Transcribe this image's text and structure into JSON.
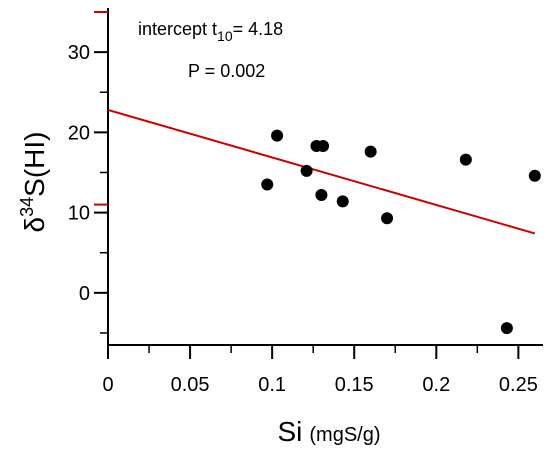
{
  "chart_data": {
    "type": "scatter",
    "xlabel_main": "Si",
    "xlabel_unit": "(mgS/g)",
    "ylabel_prefix": "δ",
    "ylabel_sup": "34",
    "ylabel_suffix": "S(HI)",
    "xlim": [
      0,
      0.265
    ],
    "ylim": [
      -6.5,
      35.5
    ],
    "x_ticks": [
      0,
      0.05,
      0.1,
      0.15,
      0.2,
      0.25
    ],
    "x_tick_labels": [
      "0",
      "0.05",
      "0.1",
      "0.15",
      "0.2",
      "0.25"
    ],
    "y_ticks": [
      0,
      10,
      20,
      30
    ],
    "y_tick_labels": [
      "0",
      "10",
      "20",
      "30"
    ],
    "grid": false,
    "points": [
      {
        "x": 0.097,
        "y": 13.5
      },
      {
        "x": 0.103,
        "y": 19.6
      },
      {
        "x": 0.121,
        "y": 15.2
      },
      {
        "x": 0.127,
        "y": 18.3
      },
      {
        "x": 0.131,
        "y": 18.3
      },
      {
        "x": 0.13,
        "y": 12.2
      },
      {
        "x": 0.143,
        "y": 11.4
      },
      {
        "x": 0.16,
        "y": 17.6
      },
      {
        "x": 0.17,
        "y": 9.3
      },
      {
        "x": 0.218,
        "y": 16.6
      },
      {
        "x": 0.243,
        "y": -4.4
      },
      {
        "x": 0.26,
        "y": 14.6
      }
    ],
    "regression_line": {
      "x": [
        0,
        0.26
      ],
      "y": [
        22.8,
        7.4
      ],
      "color": "#cc0000"
    },
    "intercept_ticks": {
      "values": [
        35,
        11
      ],
      "color": "#cc0000"
    },
    "annotation": {
      "line1_prefix": "intercept t",
      "line1_sub": "10",
      "line1_suffix": "= 4.18",
      "line2": "P = 0.002"
    }
  }
}
